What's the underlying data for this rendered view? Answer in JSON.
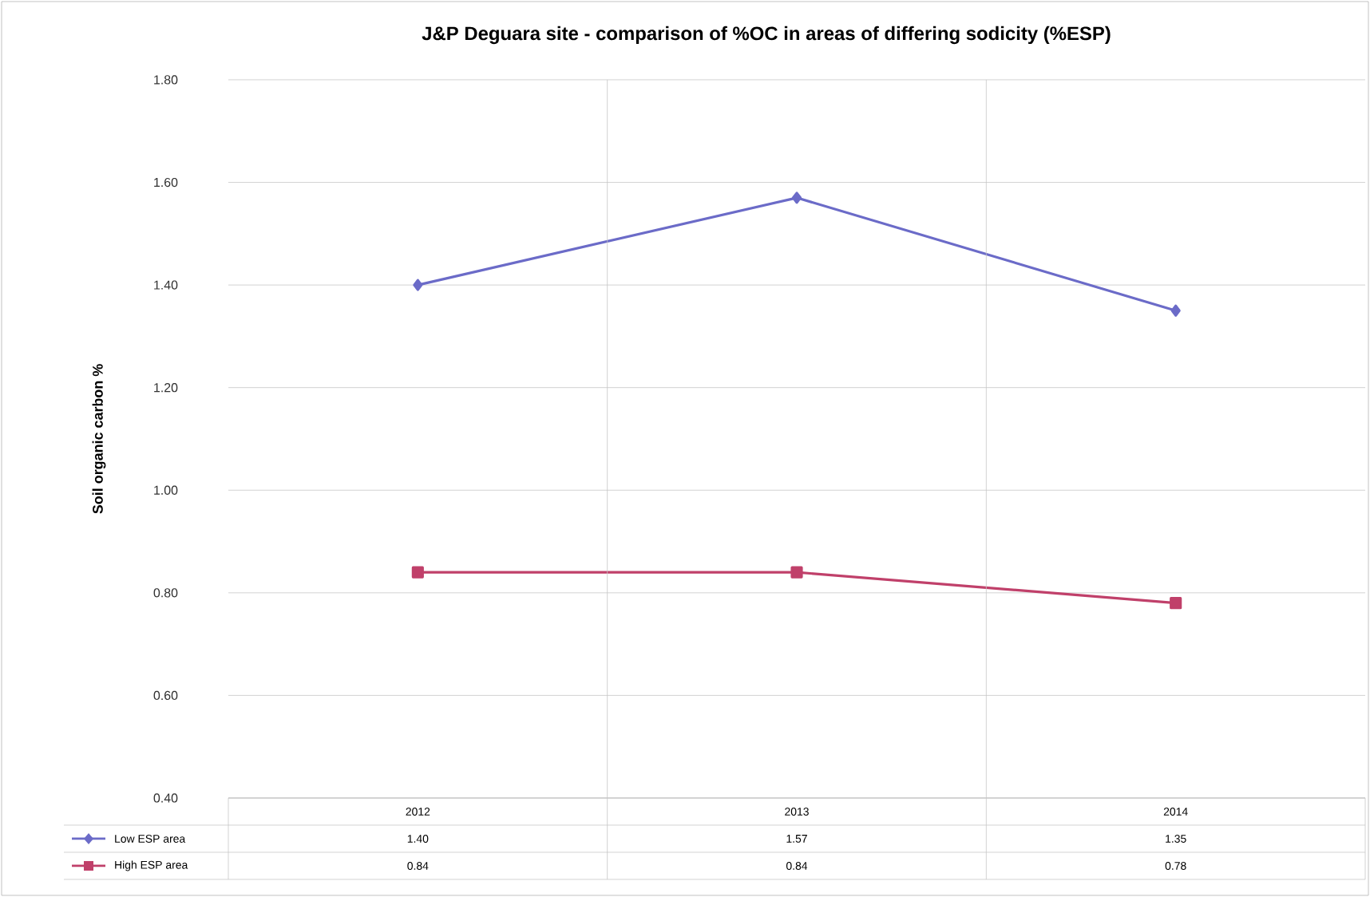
{
  "chart_data": {
    "type": "line",
    "title": "J&P Deguara site - comparison of %OC in areas of differing sodicity (%ESP)",
    "ylabel": "Soil organic carbon %",
    "categories": [
      "2012",
      "2013",
      "2014"
    ],
    "series": [
      {
        "name": "Low ESP area",
        "color": "#6b6bc8",
        "marker": "diamond",
        "values": [
          1.4,
          1.57,
          1.35
        ],
        "value_labels": [
          "1.40",
          "1.57",
          "1.35"
        ]
      },
      {
        "name": "High ESP area",
        "color": "#c0406a",
        "marker": "square",
        "values": [
          0.84,
          0.84,
          0.78
        ],
        "value_labels": [
          "0.84",
          "0.84",
          "0.78"
        ]
      }
    ],
    "ylim": [
      0.4,
      1.8
    ],
    "yticks": [
      {
        "value": 0.4,
        "label": "0.40"
      },
      {
        "value": 0.6,
        "label": "0.60"
      },
      {
        "value": 0.8,
        "label": "0.80"
      },
      {
        "value": 1.0,
        "label": "1.00"
      },
      {
        "value": 1.2,
        "label": "1.20"
      },
      {
        "value": 1.4,
        "label": "1.40"
      },
      {
        "value": 1.6,
        "label": "1.60"
      },
      {
        "value": 1.8,
        "label": "1.80"
      }
    ],
    "grid": true,
    "legend": "bottom",
    "line_style": "solid"
  }
}
